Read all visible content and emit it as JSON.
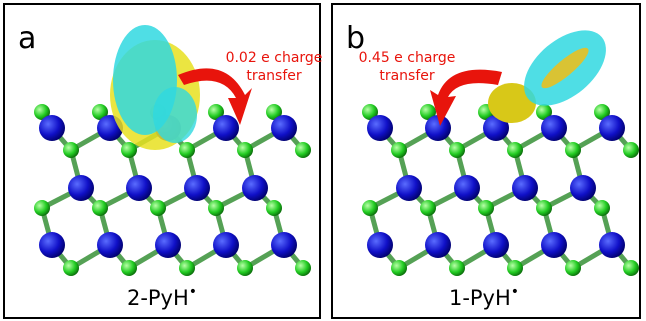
{
  "panels": [
    {
      "label": "a",
      "annotation": [
        "0.02 e charge",
        "transfer"
      ],
      "caption": {
        "base": "2-PyH",
        "sup": "•"
      }
    },
    {
      "label": "b",
      "annotation": [
        "0.45 e charge",
        "transfer"
      ],
      "caption": {
        "base": "1-PyH",
        "sup": "•"
      }
    }
  ]
}
